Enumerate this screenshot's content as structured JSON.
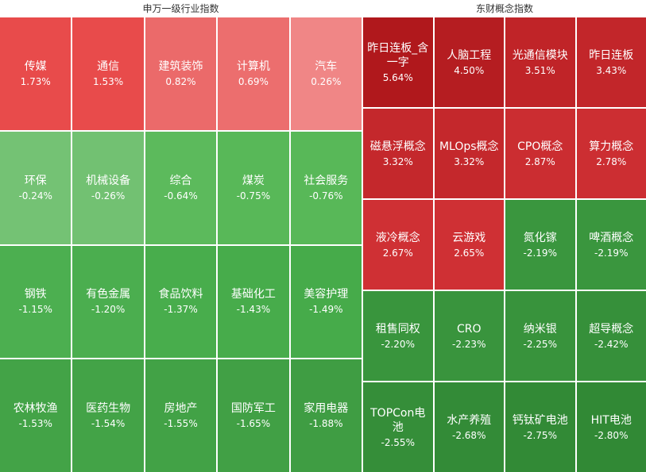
{
  "left_panel": {
    "title": "申万一级行业指数",
    "tiles": [
      {
        "name": "传媒",
        "pct": "1.73%",
        "color": "#e84b4b"
      },
      {
        "name": "通信",
        "pct": "1.53%",
        "color": "#e84b4b"
      },
      {
        "name": "建筑装饰",
        "pct": "0.82%",
        "color": "#eb6a6a"
      },
      {
        "name": "计算机",
        "pct": "0.69%",
        "color": "#ec6e6e"
      },
      {
        "name": "汽车",
        "pct": "0.26%",
        "color": "#f08686"
      },
      {
        "name": "环保",
        "pct": "-0.24%",
        "color": "#74c274"
      },
      {
        "name": "机械设备",
        "pct": "-0.26%",
        "color": "#72c172"
      },
      {
        "name": "综合",
        "pct": "-0.64%",
        "color": "#5cba5c"
      },
      {
        "name": "煤炭",
        "pct": "-0.75%",
        "color": "#58b858"
      },
      {
        "name": "社会服务",
        "pct": "-0.76%",
        "color": "#58b858"
      },
      {
        "name": "钢铁",
        "pct": "-1.15%",
        "color": "#4caf50"
      },
      {
        "name": "有色金属",
        "pct": "-1.20%",
        "color": "#4bae4f"
      },
      {
        "name": "食品饮料",
        "pct": "-1.37%",
        "color": "#48ad4c"
      },
      {
        "name": "基础化工",
        "pct": "-1.43%",
        "color": "#47ac4b"
      },
      {
        "name": "美容护理",
        "pct": "-1.49%",
        "color": "#46ab4a"
      },
      {
        "name": "农林牧渔",
        "pct": "-1.53%",
        "color": "#43a347"
      },
      {
        "name": "医药生物",
        "pct": "-1.54%",
        "color": "#43a347"
      },
      {
        "name": "房地产",
        "pct": "-1.55%",
        "color": "#42a246"
      },
      {
        "name": "国防军工",
        "pct": "-1.65%",
        "color": "#41a045"
      },
      {
        "name": "家用电器",
        "pct": "-1.88%",
        "color": "#3f9d43"
      }
    ]
  },
  "right_panel": {
    "title": "东财概念指数",
    "tiles": [
      {
        "name": "昨日连板_含一字",
        "pct": "5.64%",
        "color": "#b0181c"
      },
      {
        "name": "人脑工程",
        "pct": "4.50%",
        "color": "#b51d21"
      },
      {
        "name": "光通信模块",
        "pct": "3.51%",
        "color": "#c02428"
      },
      {
        "name": "昨日连板",
        "pct": "3.43%",
        "color": "#c2262a"
      },
      {
        "name": "磁悬浮概念",
        "pct": "3.32%",
        "color": "#c4282c"
      },
      {
        "name": "MLOps概念",
        "pct": "3.32%",
        "color": "#c4282c"
      },
      {
        "name": "CPO概念",
        "pct": "2.87%",
        "color": "#cb2d31"
      },
      {
        "name": "算力概念",
        "pct": "2.78%",
        "color": "#cc2e32"
      },
      {
        "name": "液冷概念",
        "pct": "2.67%",
        "color": "#cf3034"
      },
      {
        "name": "云游戏",
        "pct": "2.65%",
        "color": "#cf3034"
      },
      {
        "name": "氮化镓",
        "pct": "-2.19%",
        "color": "#3a963e"
      },
      {
        "name": "啤酒概念",
        "pct": "-2.19%",
        "color": "#3a963e"
      },
      {
        "name": "租售同权",
        "pct": "-2.20%",
        "color": "#39953d"
      },
      {
        "name": "CRO",
        "pct": "-2.23%",
        "color": "#39943d"
      },
      {
        "name": "纳米银",
        "pct": "-2.25%",
        "color": "#38933c"
      },
      {
        "name": "超导概念",
        "pct": "-2.42%",
        "color": "#36903a"
      },
      {
        "name": "TOPCon电池",
        "pct": "-2.55%",
        "color": "#358e39"
      },
      {
        "name": "水产养殖",
        "pct": "-2.68%",
        "color": "#338b37"
      },
      {
        "name": "钙钛矿电池",
        "pct": "-2.75%",
        "color": "#328a36"
      },
      {
        "name": "HIT电池",
        "pct": "-2.80%",
        "color": "#318935"
      }
    ]
  }
}
